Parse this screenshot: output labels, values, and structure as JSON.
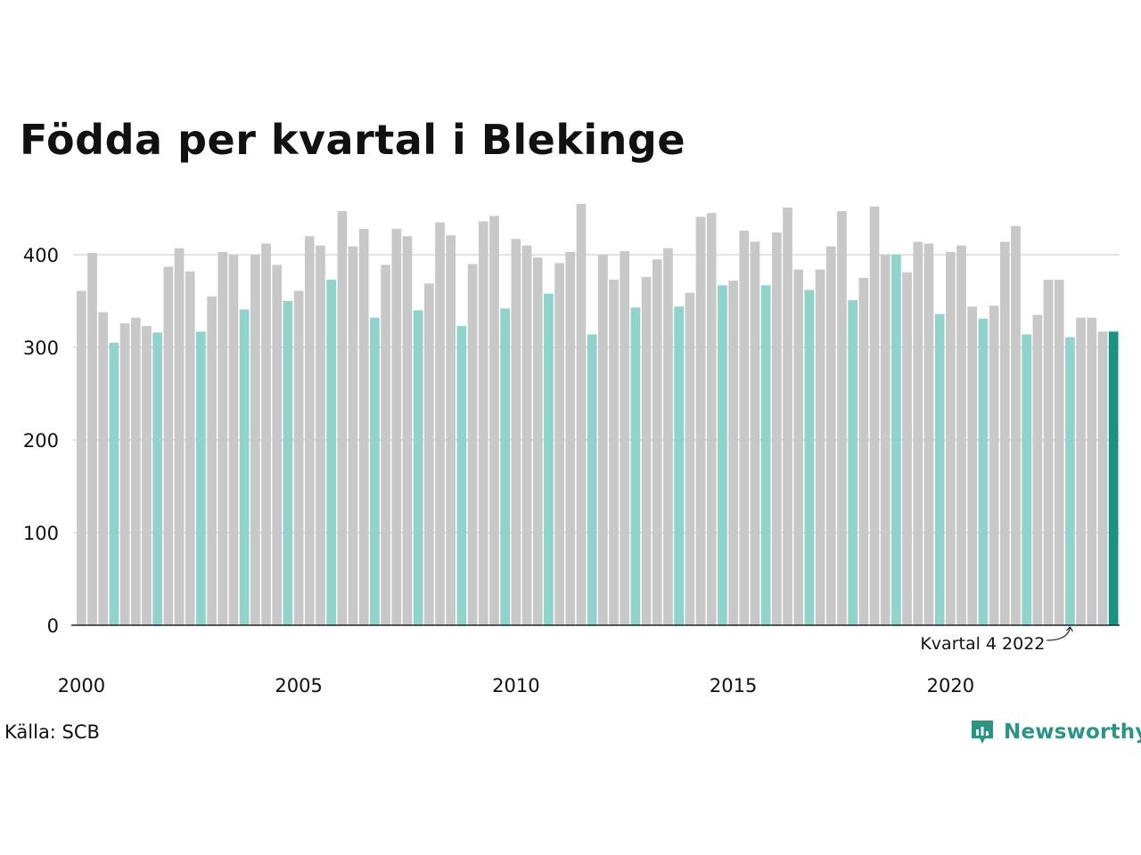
{
  "title": "Födda per kvartal i Blekinge",
  "source": "Källa: SCB",
  "brand": "Newsworthy",
  "colors": {
    "bar_default": "#c8c8c8",
    "bar_q4": "#8fd3ca",
    "bar_latest": "#1a9181",
    "brand": "#2a9485"
  },
  "chart_data": {
    "type": "bar",
    "title": "Födda per kvartal i Blekinge",
    "ylim": [
      0,
      460
    ],
    "yticks": [
      0,
      100,
      200,
      300,
      400
    ],
    "xticks": [
      "2000",
      "2005",
      "2010",
      "2015",
      "2020"
    ],
    "grid": true,
    "annotation": "Kvartal 4 2022",
    "highlight": "Q4 bars in light teal, latest quarter in dark teal",
    "values": [
      361,
      402,
      338,
      305,
      326,
      332,
      323,
      316,
      387,
      407,
      382,
      317,
      355,
      403,
      400,
      341,
      400,
      412,
      389,
      350,
      361,
      420,
      410,
      373,
      447,
      409,
      428,
      332,
      389,
      428,
      420,
      340,
      369,
      435,
      421,
      323,
      390,
      436,
      442,
      342,
      417,
      410,
      397,
      358,
      391,
      403,
      455,
      314,
      400,
      373,
      404,
      343,
      376,
      395,
      407,
      344,
      359,
      441,
      445,
      367,
      372,
      426,
      414,
      367,
      424,
      451,
      384,
      362,
      384,
      409,
      447,
      351,
      375,
      452,
      400,
      400,
      381,
      414,
      412,
      336,
      403,
      410,
      344,
      331,
      345,
      414,
      431,
      314,
      335,
      373,
      373,
      311,
      332,
      332,
      317,
      317
    ]
  }
}
